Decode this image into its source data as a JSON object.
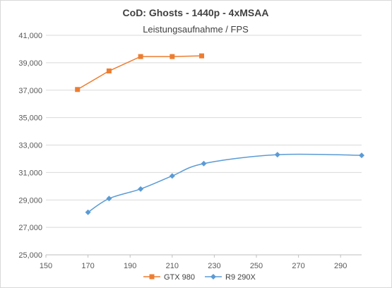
{
  "chart_data": {
    "type": "line",
    "title": "CoD: Ghosts - 1440p - 4xMSAA",
    "subtitle": "Leistungsaufnahme / FPS",
    "xlim": [
      150,
      300
    ],
    "ylim": [
      25000,
      41000
    ],
    "xticks": [
      "150",
      "170",
      "190",
      "210",
      "230",
      "250",
      "270",
      "290"
    ],
    "yticks": [
      "25,000",
      "27,000",
      "29,000",
      "31,000",
      "33,000",
      "35,000",
      "37,000",
      "39,000",
      "41,000"
    ],
    "grid": "horizontal",
    "legend_position": "bottom",
    "series": [
      {
        "name": "GTX 980",
        "color": "#ed7d31",
        "marker": "square",
        "x": [
          165,
          180,
          195,
          210,
          224
        ],
        "y": [
          37050,
          38400,
          39450,
          39450,
          39500
        ]
      },
      {
        "name": "R9 290X",
        "color": "#5b9bd5",
        "marker": "diamond",
        "x": [
          170,
          180,
          195,
          210,
          225,
          260,
          300
        ],
        "y": [
          28100,
          29100,
          29800,
          30750,
          31650,
          32300,
          32250
        ]
      }
    ]
  }
}
